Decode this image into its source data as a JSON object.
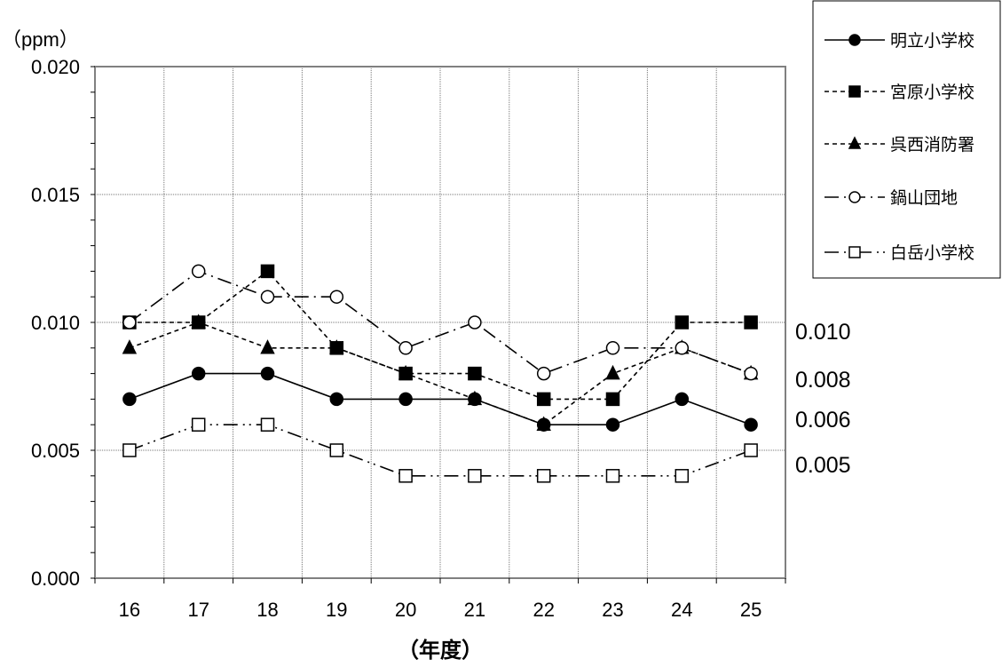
{
  "chart_data": {
    "type": "line",
    "ylabel": "（ppm）",
    "xlabel": "（年度）",
    "categories": [
      "16",
      "17",
      "18",
      "19",
      "20",
      "21",
      "22",
      "23",
      "24",
      "25"
    ],
    "ylim": [
      0,
      0.02
    ],
    "yticks": [
      "0.000",
      "0.005",
      "0.010",
      "0.015",
      "0.020"
    ],
    "grid": true,
    "legend_position": "top-right",
    "series": [
      {
        "name": "明立小学校",
        "marker": "filled-circle",
        "dash": "solid",
        "values": [
          0.007,
          0.008,
          0.008,
          0.007,
          0.007,
          0.007,
          0.006,
          0.006,
          0.007,
          0.006
        ]
      },
      {
        "name": "宮原小学校",
        "marker": "filled-square",
        "dash": "dashed",
        "values": [
          0.01,
          0.01,
          0.012,
          0.009,
          0.008,
          0.008,
          0.007,
          0.007,
          0.01,
          0.01
        ]
      },
      {
        "name": "呉西消防署",
        "marker": "filled-triangle",
        "dash": "dashed",
        "values": [
          0.009,
          0.01,
          0.009,
          0.009,
          0.008,
          0.007,
          0.006,
          0.008,
          0.009,
          0.008
        ]
      },
      {
        "name": "鍋山団地",
        "marker": "open-circle",
        "dash": "dash-dot",
        "values": [
          0.01,
          0.012,
          0.011,
          0.011,
          0.009,
          0.01,
          0.008,
          0.009,
          0.009,
          0.008
        ]
      },
      {
        "name": "白岳小学校",
        "marker": "open-square",
        "dash": "dash-dot-dot",
        "values": [
          0.005,
          0.006,
          0.006,
          0.005,
          0.004,
          0.004,
          0.004,
          0.004,
          0.004,
          0.005
        ]
      }
    ],
    "end_labels": [
      "0.010",
      "0.008",
      "0.006",
      "0.005"
    ]
  }
}
